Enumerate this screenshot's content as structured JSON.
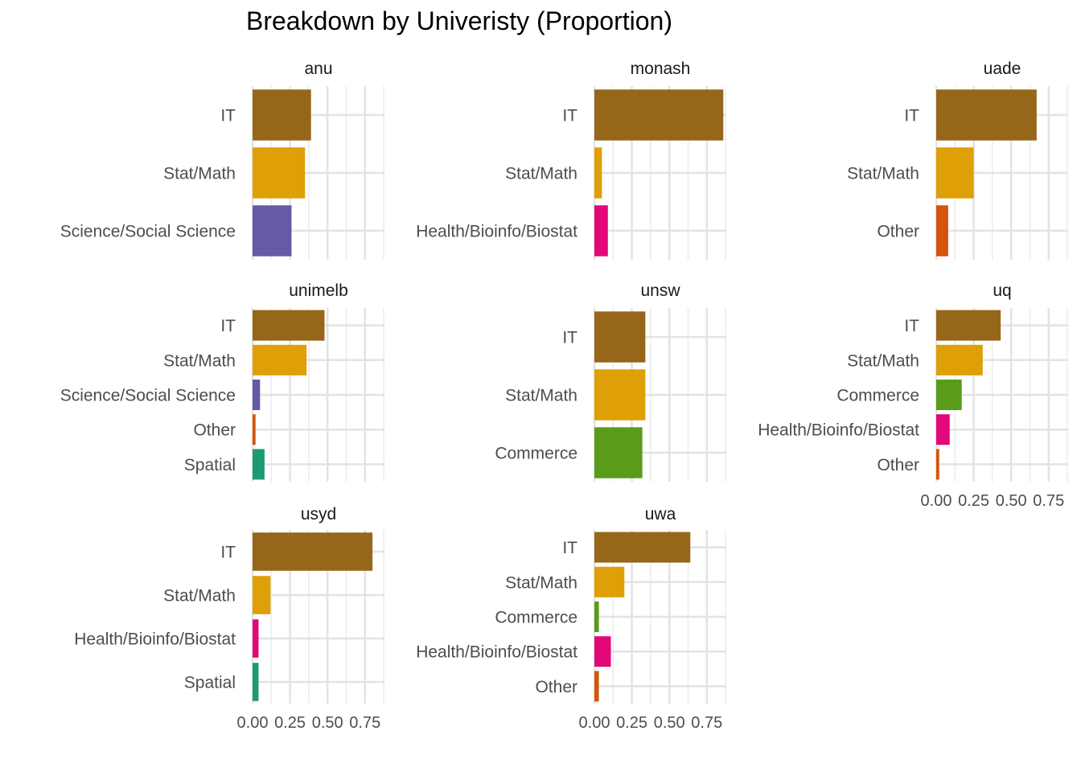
{
  "chart_data": {
    "type": "bar",
    "orientation": "horizontal",
    "title": "Breakdown by Univeristy (Proportion)",
    "xlabel": "",
    "ylabel": "",
    "xlim": [
      0,
      0.88
    ],
    "x_ticks": [
      {
        "value": 0.0,
        "label": "0.00"
      },
      {
        "value": 0.25,
        "label": "0.25"
      },
      {
        "value": 0.5,
        "label": "0.50"
      },
      {
        "value": 0.75,
        "label": "0.75"
      }
    ],
    "grid": true,
    "legend": "none",
    "colors": {
      "IT": "#966619",
      "Stat/Math": "#df9f07",
      "Science/Social Science": "#645aa6",
      "Health/Bioinfo/Biostat": "#e1087a",
      "Other": "#d3540b",
      "Spatial": "#1c9a74",
      "Commerce": "#589c19"
    },
    "facets": [
      {
        "name": "anu",
        "categories": [
          "IT",
          "Stat/Math",
          "Science/Social Science"
        ],
        "values": [
          0.39,
          0.35,
          0.26
        ]
      },
      {
        "name": "monash",
        "categories": [
          "IT",
          "Stat/Math",
          "Health/Bioinfo/Biostat"
        ],
        "values": [
          0.86,
          0.05,
          0.09
        ]
      },
      {
        "name": "uade",
        "categories": [
          "IT",
          "Stat/Math",
          "Other"
        ],
        "values": [
          0.67,
          0.25,
          0.08
        ]
      },
      {
        "name": "unimelb",
        "categories": [
          "IT",
          "Stat/Math",
          "Science/Social Science",
          "Other",
          "Spatial"
        ],
        "values": [
          0.48,
          0.36,
          0.05,
          0.02,
          0.08
        ]
      },
      {
        "name": "unsw",
        "categories": [
          "IT",
          "Stat/Math",
          "Commerce"
        ],
        "values": [
          0.34,
          0.34,
          0.32
        ]
      },
      {
        "name": "uq",
        "categories": [
          "IT",
          "Stat/Math",
          "Commerce",
          "Health/Bioinfo/Biostat",
          "Other"
        ],
        "values": [
          0.43,
          0.31,
          0.17,
          0.09,
          0.02
        ]
      },
      {
        "name": "usyd",
        "categories": [
          "IT",
          "Stat/Math",
          "Health/Bioinfo/Biostat",
          "Spatial"
        ],
        "values": [
          0.8,
          0.12,
          0.04,
          0.04
        ]
      },
      {
        "name": "uwa",
        "categories": [
          "IT",
          "Stat/Math",
          "Commerce",
          "Health/Bioinfo/Biostat",
          "Other"
        ],
        "values": [
          0.64,
          0.2,
          0.03,
          0.11,
          0.03
        ]
      }
    ]
  }
}
